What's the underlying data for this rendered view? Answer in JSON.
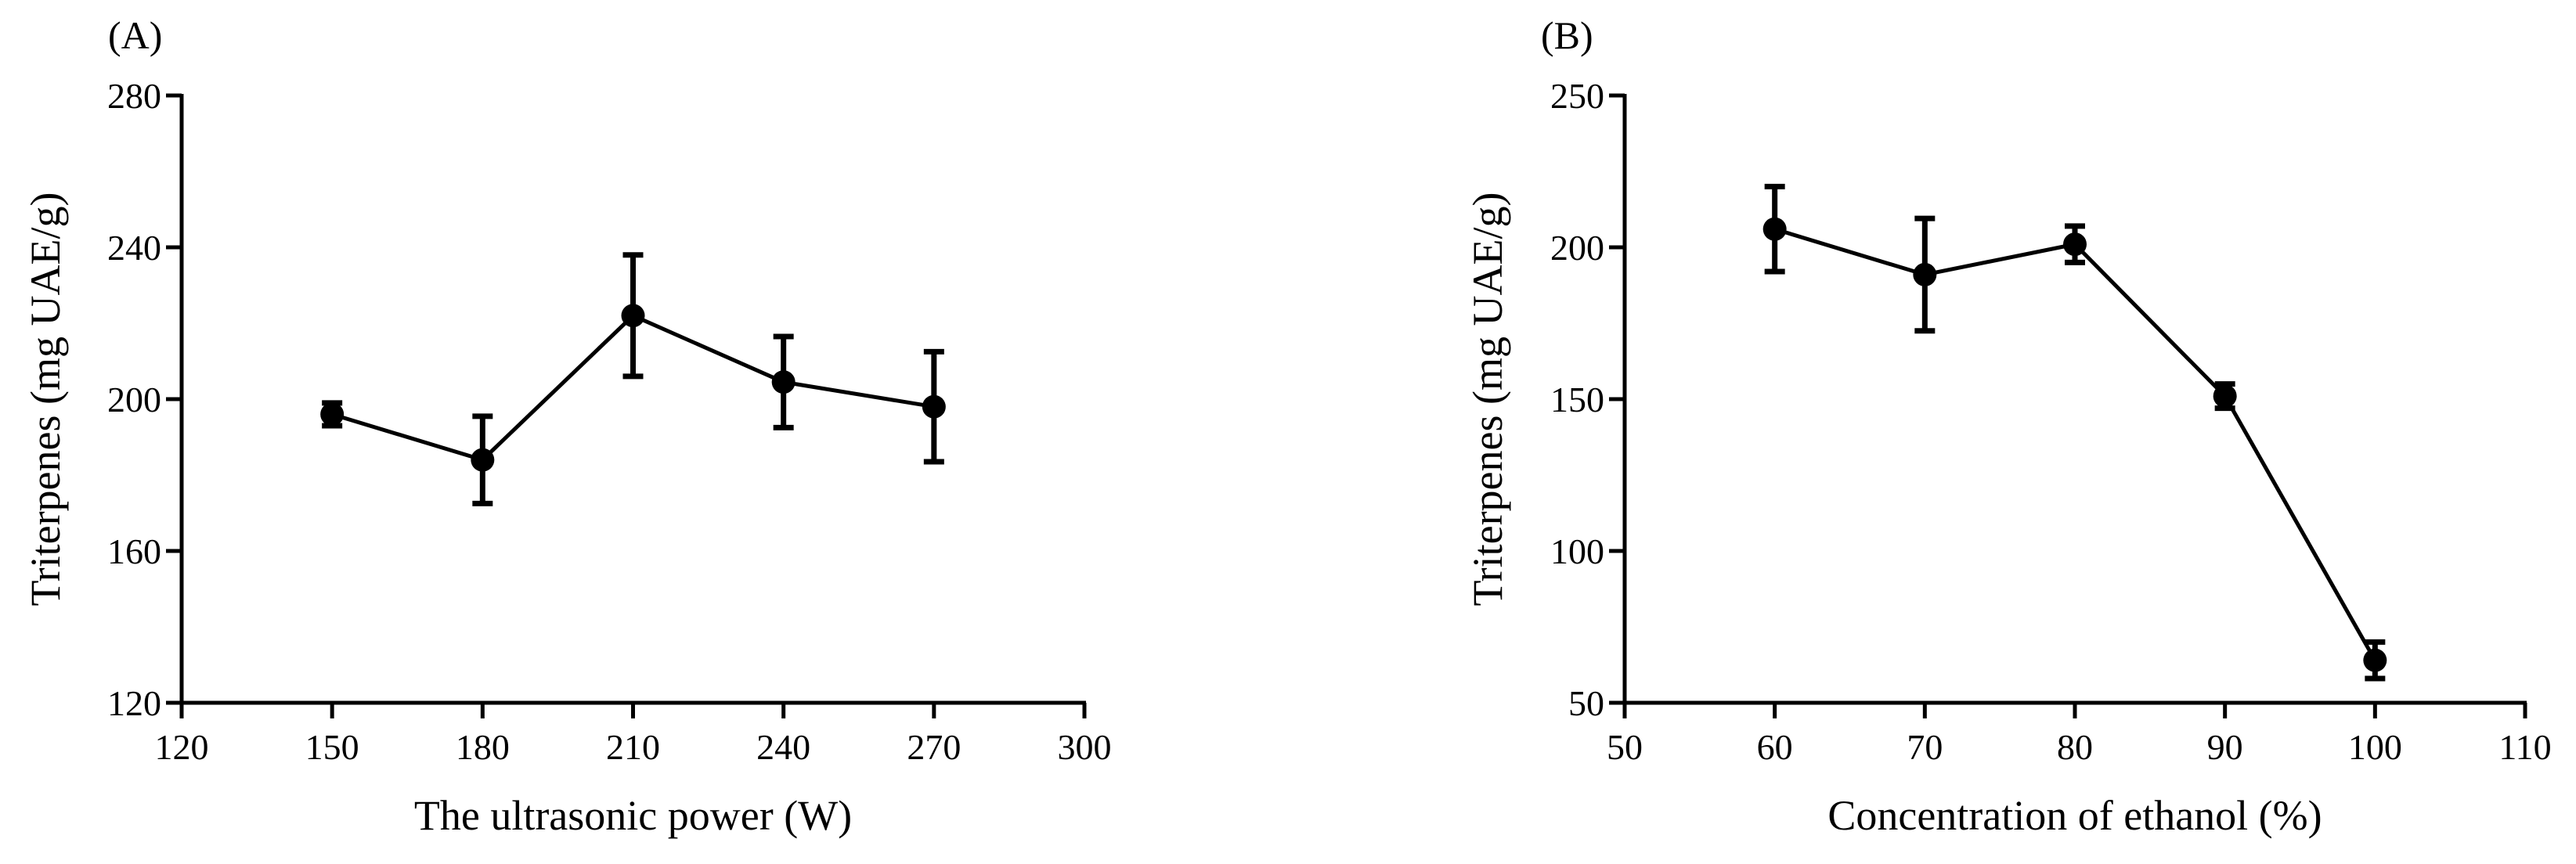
{
  "chart_data": [
    {
      "type": "line",
      "panel_label": "(A)",
      "xlabel": "The ultrasonic power (W)",
      "ylabel": "Triterpenes  (mg UAE/g)",
      "xlim": [
        120,
        300
      ],
      "ylim": [
        120,
        280
      ],
      "xticks": [
        120,
        150,
        180,
        210,
        240,
        270,
        300
      ],
      "yticks": [
        120,
        160,
        200,
        240,
        280
      ],
      "grid": false,
      "legend": "none",
      "series": [
        {
          "x": [
            150,
            180,
            210,
            240,
            270
          ],
          "y": [
            196,
            184,
            222,
            204.5,
            198
          ],
          "error": [
            3,
            11.5,
            16,
            12,
            14.5
          ]
        }
      ]
    },
    {
      "type": "line",
      "panel_label": "(B)",
      "xlabel": "Concentration of ethanol (%)",
      "ylabel": "Triterpenes  (mg UAE/g)",
      "xlim": [
        50,
        110
      ],
      "ylim": [
        50,
        250
      ],
      "xticks": [
        50,
        60,
        70,
        80,
        90,
        100,
        110
      ],
      "yticks": [
        50,
        100,
        150,
        200,
        250
      ],
      "grid": false,
      "legend": "none",
      "series": [
        {
          "x": [
            60,
            70,
            80,
            90,
            100
          ],
          "y": [
            206,
            191,
            201,
            151,
            64
          ],
          "error": [
            14,
            18.5,
            6,
            4,
            6
          ]
        }
      ]
    }
  ]
}
